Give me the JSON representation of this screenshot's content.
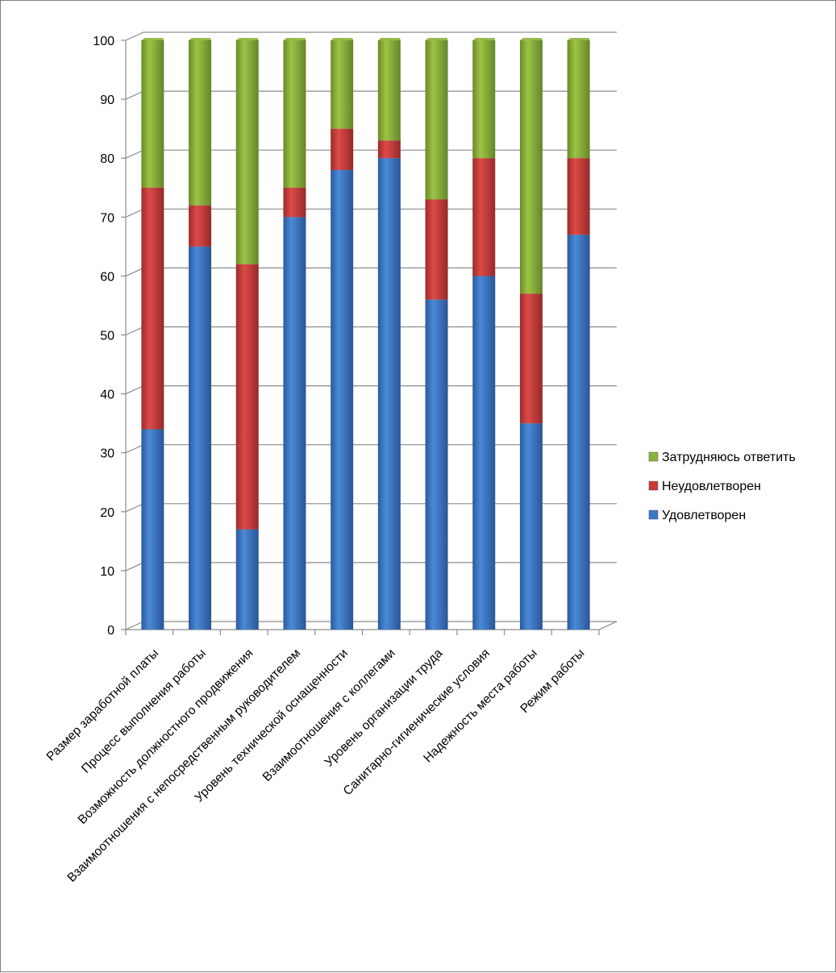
{
  "chart_data": {
    "type": "bar",
    "stacked": true,
    "categories": [
      "Размер заработной платы",
      "Процесс выполнения работы",
      "Возможность должностного продвижения",
      "Взаимоотношения с непосредственным руководителем",
      "Уровень технической оснащенности",
      "Взаимоотношения с коллегами",
      "Уровень организации труда",
      "Санитарно-гигиенические условия",
      "Надежность  места работы",
      "Режим работы"
    ],
    "series": [
      {
        "name": "Удовлетворен",
        "color": "#3a78c9",
        "values": [
          34,
          65,
          17,
          70,
          78,
          80,
          56,
          60,
          35,
          67
        ]
      },
      {
        "name": "Неудовлетворен",
        "color": "#c9393a",
        "values": [
          41,
          7,
          45,
          5,
          7,
          3,
          17,
          20,
          22,
          13
        ]
      },
      {
        "name": "Затрудняюсь ответить",
        "color": "#8bb33a",
        "values": [
          25,
          28,
          38,
          25,
          15,
          17,
          27,
          20,
          43,
          20
        ]
      }
    ],
    "yticks": [
      "0",
      "10",
      "20",
      "30",
      "40",
      "50",
      "60",
      "70",
      "80",
      "90",
      "100"
    ],
    "ylim": [
      0,
      100
    ],
    "grid": true,
    "legend_position": "right",
    "legend_order": [
      "Затрудняюсь ответить",
      "Неудовлетворен",
      "Удовлетворен"
    ]
  }
}
